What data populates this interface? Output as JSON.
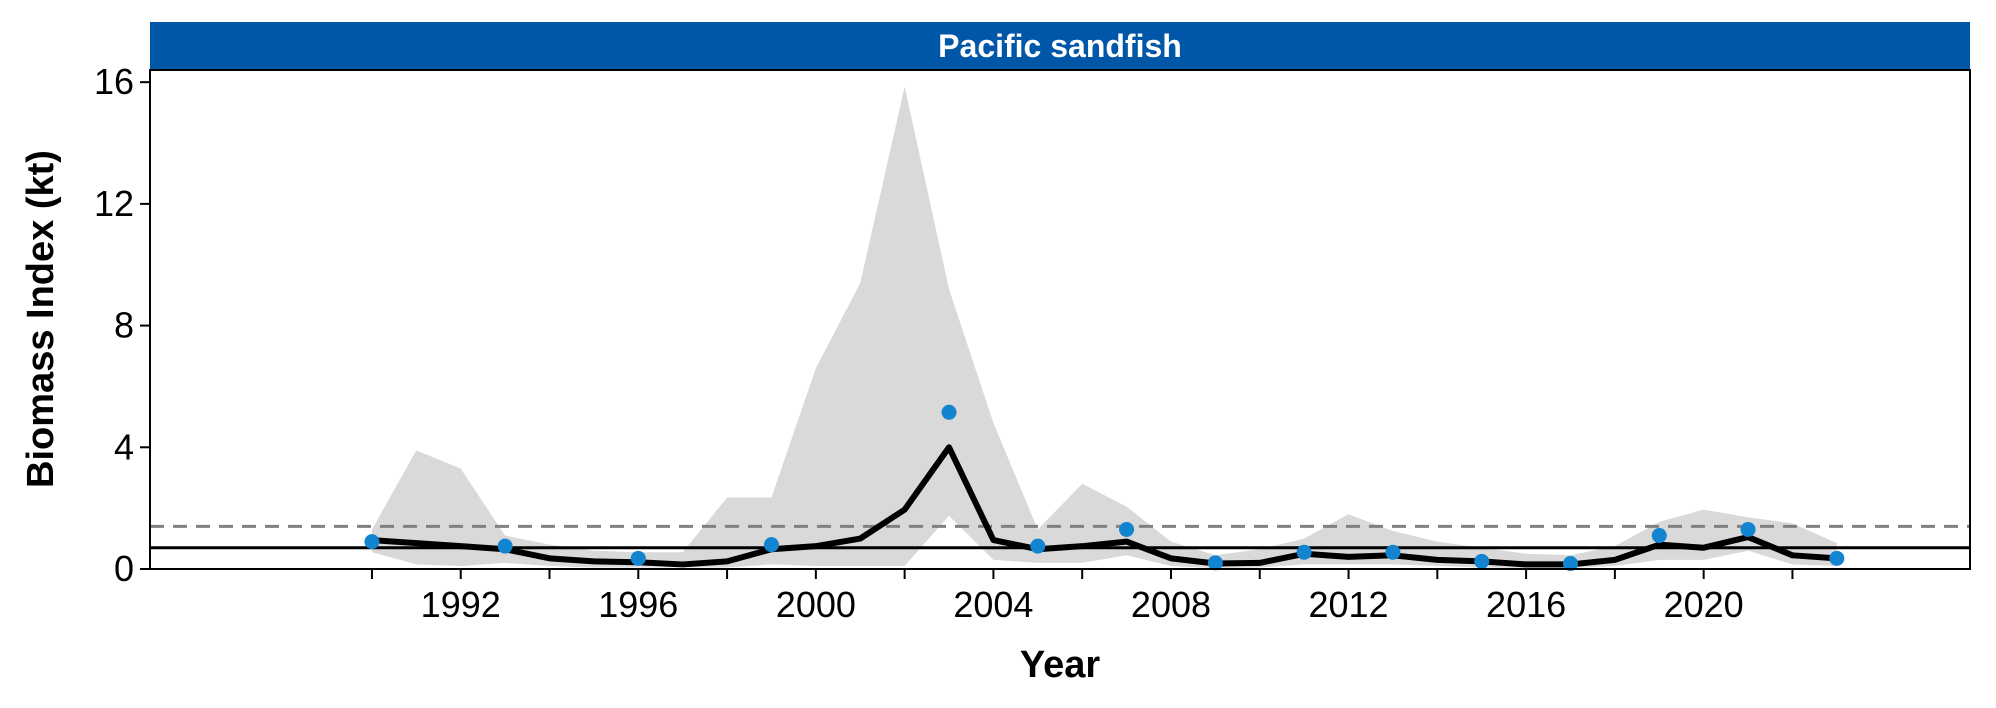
{
  "chart_data": {
    "type": "line",
    "title": "Pacific sandfish",
    "xlabel": "Year",
    "ylabel": "Biomass Index (kt)",
    "xlim": [
      1985,
      2026
    ],
    "ylim": [
      0,
      16.4
    ],
    "x_ticks": [
      1992,
      1996,
      2000,
      2004,
      2008,
      2012,
      2016,
      2020
    ],
    "x_minor_ticks": [
      1990,
      1994,
      1998,
      2002,
      2006,
      2010,
      2014,
      2018,
      2022
    ],
    "y_ticks": [
      0,
      4,
      8,
      12,
      16
    ],
    "grid": false,
    "colors": {
      "strip": "#0057a8",
      "ribbon": "#d9d9d9",
      "trend": "#000000",
      "points": "#1384d0",
      "reference_lines": "#000000",
      "dashed_line": "#808080"
    },
    "years": [
      1990,
      1991,
      1992,
      1993,
      1994,
      1995,
      1996,
      1997,
      1998,
      1999,
      2000,
      2001,
      2002,
      2003,
      2004,
      2005,
      2006,
      2007,
      2008,
      2009,
      2010,
      2011,
      2012,
      2013,
      2014,
      2015,
      2016,
      2017,
      2018,
      2019,
      2020,
      2021,
      2022,
      2023
    ],
    "trend": [
      0.95,
      0.85,
      0.75,
      0.65,
      0.35,
      0.25,
      0.22,
      0.15,
      0.25,
      0.65,
      0.75,
      1.0,
      1.95,
      4.0,
      0.95,
      0.65,
      0.75,
      0.9,
      0.35,
      0.18,
      0.2,
      0.5,
      0.4,
      0.45,
      0.3,
      0.25,
      0.15,
      0.15,
      0.3,
      0.8,
      0.7,
      1.05,
      0.45,
      0.35
    ],
    "ribbon_lower": [
      0.55,
      0.15,
      0.1,
      0.2,
      0.1,
      0.05,
      0.05,
      0.05,
      0.05,
      0.15,
      0.1,
      0.1,
      0.1,
      1.75,
      0.3,
      0.2,
      0.2,
      0.45,
      0.1,
      0.03,
      0.05,
      0.15,
      0.15,
      0.15,
      0.1,
      0.05,
      0.03,
      0.03,
      0.1,
      0.3,
      0.3,
      0.6,
      0.15,
      0.1
    ],
    "ribbon_upper": [
      1.3,
      3.9,
      3.3,
      1.1,
      0.8,
      0.6,
      0.55,
      0.55,
      2.35,
      2.35,
      6.6,
      9.4,
      15.85,
      9.2,
      4.8,
      1.3,
      2.8,
      2.05,
      0.9,
      0.45,
      0.65,
      1.0,
      1.8,
      1.25,
      0.9,
      0.7,
      0.5,
      0.45,
      0.75,
      1.55,
      1.95,
      1.7,
      1.5,
      0.85
    ],
    "observed": {
      "years": [
        1990,
        1993,
        1996,
        1999,
        2003,
        2005,
        2007,
        2009,
        2011,
        2013,
        2015,
        2017,
        2019,
        2021,
        2023
      ],
      "values": [
        0.9,
        0.75,
        0.35,
        0.8,
        5.15,
        0.75,
        1.3,
        0.2,
        0.55,
        0.55,
        0.25,
        0.18,
        1.1,
        1.3,
        0.35
      ]
    },
    "hlines": [
      {
        "value": 0.7,
        "style": "solid"
      },
      {
        "value": 1.4,
        "style": "dashed"
      }
    ]
  }
}
